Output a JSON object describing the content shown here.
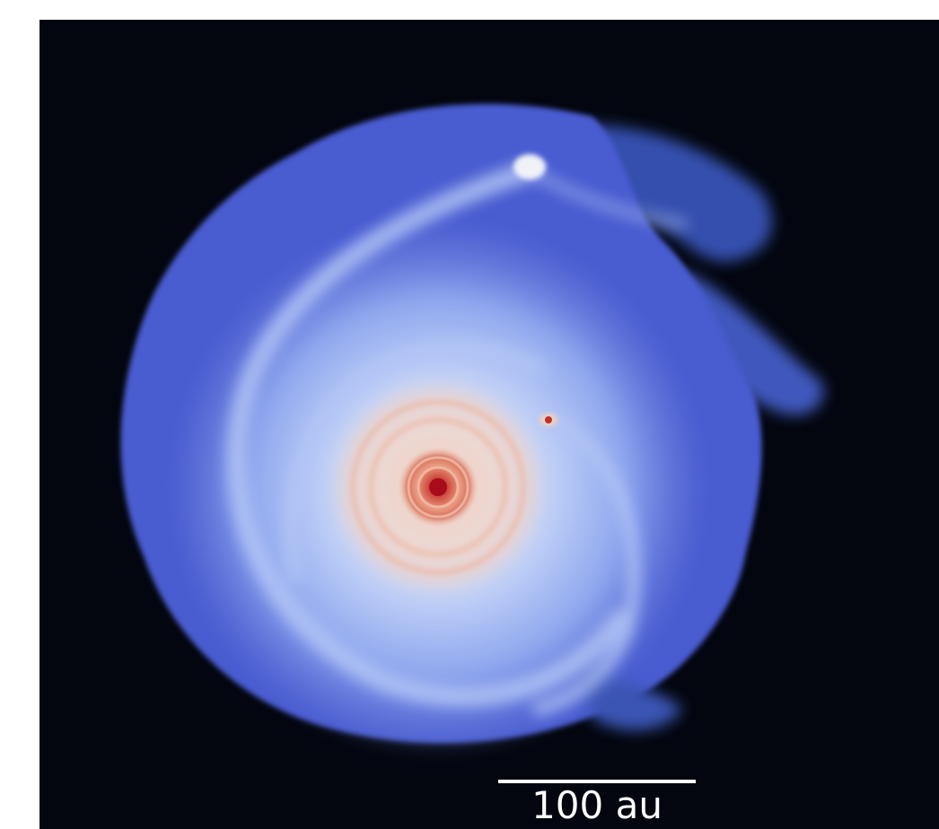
{
  "scale_bar": {
    "label": "100 au"
  }
}
